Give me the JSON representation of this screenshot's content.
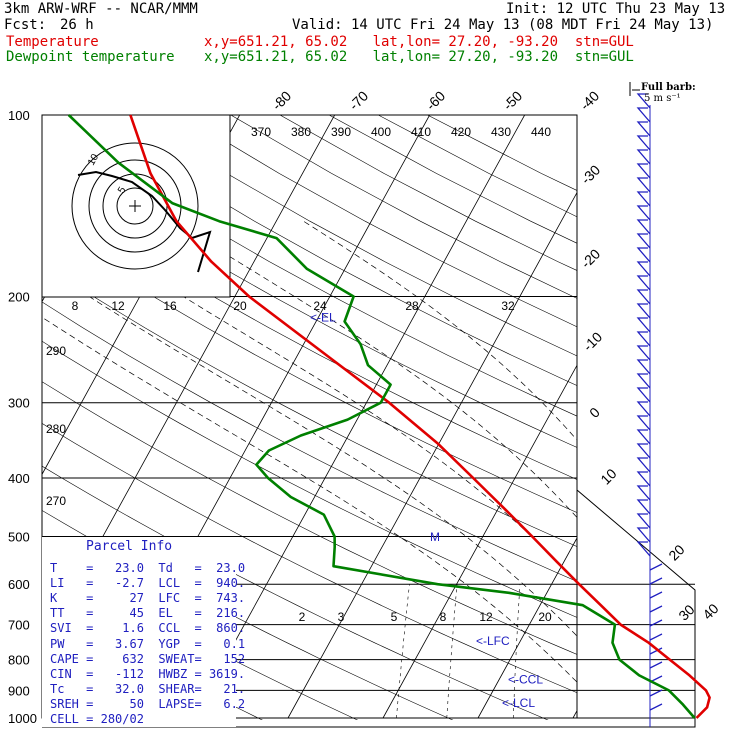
{
  "header": {
    "model": "3km ARW-WRF -- NCAR/MMM",
    "init": "Init: 12 UTC Thu 23 May 13",
    "fcst_label": "Fcst:",
    "fcst_value": "26 h",
    "valid": "Valid: 14 UTC Fri 24 May 13 (08 MDT Fri 24 May 13)",
    "temp_label": "Temperature",
    "temp_loc": "x,y=651.21, 65.02   lat,lon= 27.20, -93.20  stn=GUL",
    "dew_label": "Dewpoint temperature",
    "dew_loc": "x,y=651.21, 65.02   lat,lon= 27.20, -93.20  stn=GUL",
    "barb_title": "Full barb:",
    "barb_units": "5 m s⁻¹"
  },
  "colors": {
    "temperature": "#e00000",
    "dewpoint": "#008000",
    "annot": "#2020c0",
    "hodo": "#000000"
  },
  "parcel": {
    "title": "Parcel Info",
    "rows": [
      [
        "T",
        "23.0",
        "Td",
        "23.0"
      ],
      [
        "LI",
        "-2.7",
        "LCL",
        "940."
      ],
      [
        "K",
        "27",
        "LFC",
        "743."
      ],
      [
        "TT",
        "45",
        "EL",
        "216."
      ],
      [
        "SVI",
        "1.6",
        "CCL",
        "860."
      ],
      [
        "PW",
        "3.67",
        "YGP",
        "0.1"
      ],
      [
        "CAPE",
        "632",
        "SWEAT",
        "152"
      ],
      [
        "CIN",
        "-112",
        "HWBZ",
        "3619."
      ],
      [
        "Tc",
        "32.0",
        "SHEAR",
        "21."
      ],
      [
        "SREH",
        "50",
        "LAPSE",
        "6.2"
      ]
    ],
    "cell_label": "CELL",
    "cell_value": "280/02"
  },
  "chart_data": {
    "type": "line",
    "pressure_ticks": [
      "100",
      "200",
      "300",
      "400",
      "500",
      "600",
      "700",
      "800",
      "900",
      "1000"
    ],
    "isotherm_labels_top": [
      "-80",
      "-70",
      "-60",
      "-50",
      "-40"
    ],
    "isotherm_labels_right": [
      "-30",
      "-20",
      "-10",
      "0",
      "10",
      "20",
      "30",
      "40"
    ],
    "theta_labels": [
      "370",
      "380",
      "390",
      "400",
      "410",
      "420",
      "430",
      "440"
    ],
    "theta_left_labels": [
      "290",
      "280",
      "270"
    ],
    "kts_label": "kts",
    "hodo_speeds": [
      "8",
      "12",
      "16",
      "20",
      "24",
      "28",
      "32"
    ],
    "hodo_ring_labels": [
      "5",
      "10"
    ],
    "mixing_ratio_labels": [
      "2",
      "3",
      "5",
      "8",
      "12",
      "20"
    ],
    "levels": [
      {
        "label": "<-EL",
        "p": 216
      },
      {
        "label": "<-LFC",
        "p": 743
      },
      {
        "label": "<-CCL",
        "p": 860
      },
      {
        "label": "<-LCL",
        "p": 940
      }
    ],
    "m_marker": "M",
    "series": [
      {
        "name": "Temperature",
        "points": [
          [
            1000,
            23
          ],
          [
            960,
            23.5
          ],
          [
            925,
            23.2
          ],
          [
            900,
            22.4
          ],
          [
            850,
            19.8
          ],
          [
            800,
            16.8
          ],
          [
            750,
            13.6
          ],
          [
            700,
            9.6
          ],
          [
            650,
            6.4
          ],
          [
            600,
            2.9
          ],
          [
            550,
            -0.8
          ],
          [
            500,
            -4.8
          ],
          [
            450,
            -9.3
          ],
          [
            400,
            -14.4
          ],
          [
            350,
            -20.2
          ],
          [
            300,
            -27.6
          ],
          [
            250,
            -37
          ],
          [
            200,
            -48.5
          ],
          [
            175,
            -54.5
          ],
          [
            150,
            -60.5
          ],
          [
            125,
            -66
          ],
          [
            100,
            -71.5
          ]
        ]
      },
      {
        "name": "Dewpoint temperature",
        "points": [
          [
            1000,
            22.8
          ],
          [
            950,
            20.8
          ],
          [
            900,
            18.5
          ],
          [
            850,
            14.5
          ],
          [
            800,
            11.5
          ],
          [
            750,
            9.8
          ],
          [
            700,
            9.0
          ],
          [
            650,
            4.5
          ],
          [
            620,
            -4
          ],
          [
            600,
            -12
          ],
          [
            560,
            -24
          ],
          [
            520,
            -25
          ],
          [
            500,
            -25.6
          ],
          [
            460,
            -28
          ],
          [
            430,
            -32.5
          ],
          [
            400,
            -36
          ],
          [
            380,
            -38
          ],
          [
            360,
            -37.5
          ],
          [
            340,
            -35
          ],
          [
            320,
            -31
          ],
          [
            300,
            -28.5
          ],
          [
            280,
            -28.5
          ],
          [
            260,
            -32
          ],
          [
            240,
            -34
          ],
          [
            220,
            -37
          ],
          [
            200,
            -37.5
          ],
          [
            180,
            -44
          ],
          [
            160,
            -49
          ],
          [
            150,
            -56
          ],
          [
            140,
            -62
          ],
          [
            120,
            -70
          ],
          [
            100,
            -78
          ]
        ]
      }
    ]
  }
}
